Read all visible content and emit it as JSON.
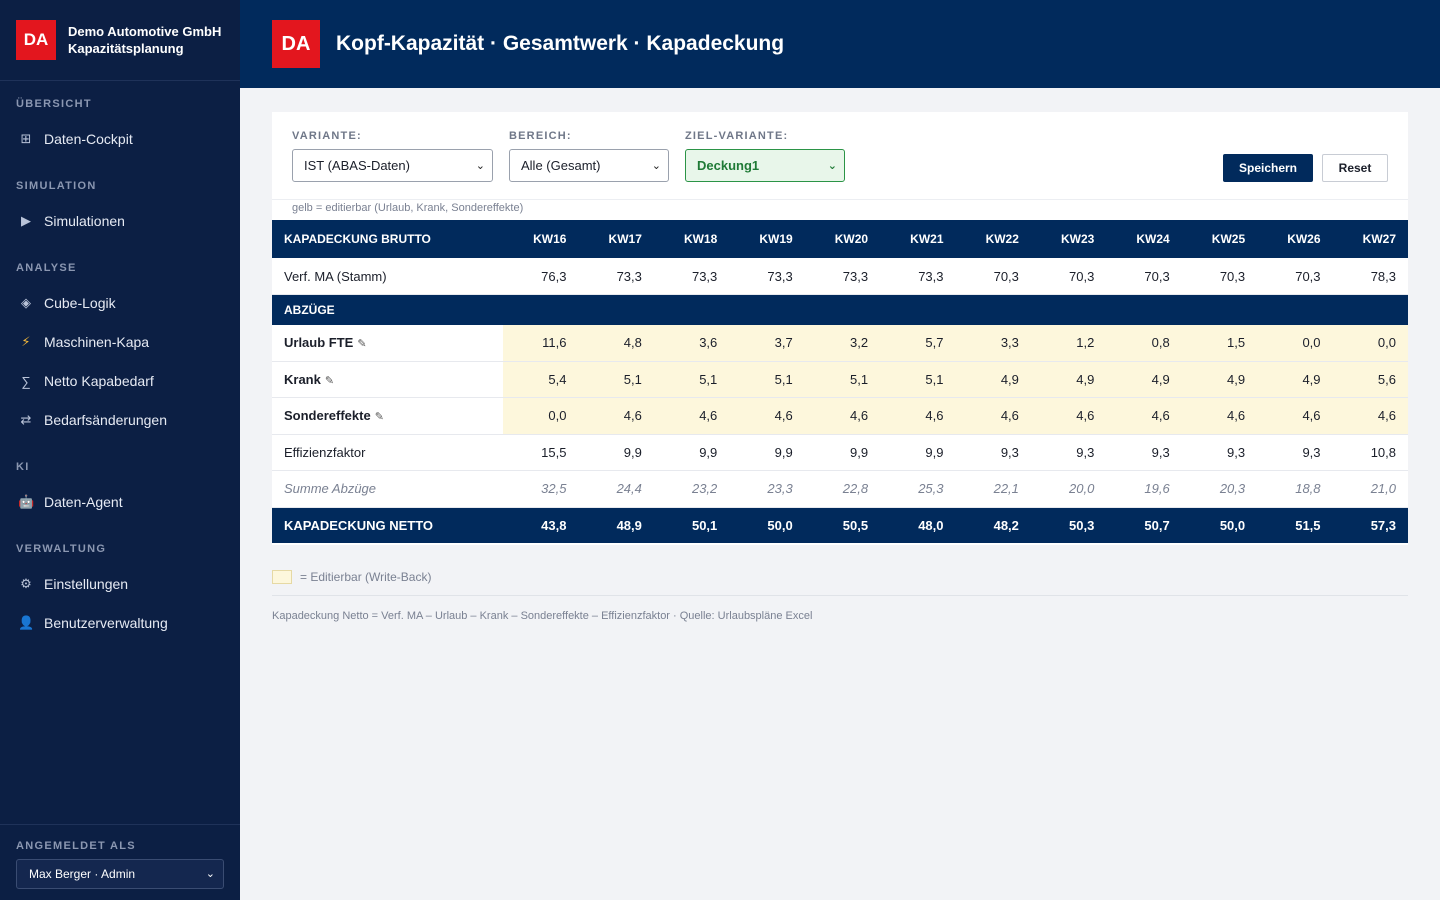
{
  "sidebar": {
    "logo": "DA",
    "company": "Demo Automotive GmbH",
    "app": "Kapazitätsplanung",
    "sections": [
      {
        "title": "ÜBERSICHT",
        "items": [
          {
            "label": "Daten-Cockpit",
            "icon": "⊞"
          }
        ]
      },
      {
        "title": "SIMULATION",
        "items": [
          {
            "label": "Simulationen",
            "icon": "▶"
          }
        ]
      },
      {
        "title": "ANALYSE",
        "items": [
          {
            "label": "Cube-Logik",
            "icon": "◈"
          },
          {
            "label": "Maschinen-Kapa",
            "icon": "⚡"
          },
          {
            "label": "Netto Kapabedarf",
            "icon": "∑"
          },
          {
            "label": "Bedarfsänderungen",
            "icon": "⇄"
          }
        ]
      },
      {
        "title": "KI",
        "items": [
          {
            "label": "Daten-Agent",
            "icon": "🤖"
          }
        ]
      },
      {
        "title": "VERWALTUNG",
        "items": [
          {
            "label": "Einstellungen",
            "icon": "⚙"
          },
          {
            "label": "Benutzerverwaltung",
            "icon": "👤"
          }
        ]
      }
    ],
    "footer_label": "ANGEMELDET ALS",
    "user": "Max Berger · Admin"
  },
  "header": {
    "logo": "DA",
    "title": "Kopf-Kapazität · Gesamtwerk · Kapadeckung"
  },
  "filters": {
    "variante_label": "VARIANTE:",
    "variante_value": "IST (ABAS-Daten)",
    "bereich_label": "BEREICH:",
    "bereich_value": "Alle (Gesamt)",
    "ziel_label": "ZIEL-VARIANTE:",
    "ziel_value": "Deckung1",
    "save_label": "Speichern",
    "reset_label": "Reset",
    "hint": "gelb = editierbar (Urlaub, Krank, Sondereffekte)"
  },
  "table": {
    "header_label": "KAPADECKUNG BRUTTO",
    "weeks": [
      "KW16",
      "KW17",
      "KW18",
      "KW19",
      "KW20",
      "KW21",
      "KW22",
      "KW23",
      "KW24",
      "KW25",
      "KW26",
      "KW27"
    ],
    "verf": {
      "label": "Verf. MA (Stamm)",
      "values": [
        "76,3",
        "73,3",
        "73,3",
        "73,3",
        "73,3",
        "73,3",
        "70,3",
        "70,3",
        "70,3",
        "70,3",
        "70,3",
        "78,3"
      ]
    },
    "abzuege_label": "ABZÜGE",
    "urlaub": {
      "label": "Urlaub FTE",
      "values": [
        "11,6",
        "4,8",
        "3,6",
        "3,7",
        "3,2",
        "5,7",
        "3,3",
        "1,2",
        "0,8",
        "1,5",
        "0,0",
        "0,0"
      ]
    },
    "krank": {
      "label": "Krank",
      "values": [
        "5,4",
        "5,1",
        "5,1",
        "5,1",
        "5,1",
        "5,1",
        "4,9",
        "4,9",
        "4,9",
        "4,9",
        "4,9",
        "5,6"
      ]
    },
    "sonder": {
      "label": "Sondereffekte",
      "values": [
        "0,0",
        "4,6",
        "4,6",
        "4,6",
        "4,6",
        "4,6",
        "4,6",
        "4,6",
        "4,6",
        "4,6",
        "4,6",
        "4,6"
      ]
    },
    "effizienz": {
      "label": "Effizienzfaktor",
      "values": [
        "15,5",
        "9,9",
        "9,9",
        "9,9",
        "9,9",
        "9,9",
        "9,3",
        "9,3",
        "9,3",
        "9,3",
        "9,3",
        "10,8"
      ]
    },
    "summe": {
      "label": "Summe Abzüge",
      "values": [
        "32,5",
        "24,4",
        "23,2",
        "23,3",
        "22,8",
        "25,3",
        "22,1",
        "20,0",
        "19,6",
        "20,3",
        "18,8",
        "21,0"
      ]
    },
    "netto": {
      "label": "KAPADECKUNG NETTO",
      "values": [
        "43,8",
        "48,9",
        "50,1",
        "50,0",
        "50,5",
        "48,0",
        "48,2",
        "50,3",
        "50,7",
        "50,0",
        "51,5",
        "57,3"
      ]
    }
  },
  "legend": "= Editierbar (Write-Back)",
  "formula": "Kapadeckung Netto = Verf. MA – Urlaub – Krank – Sondereffekte – Effizienzfaktor · Quelle: Urlaubspläne Excel"
}
